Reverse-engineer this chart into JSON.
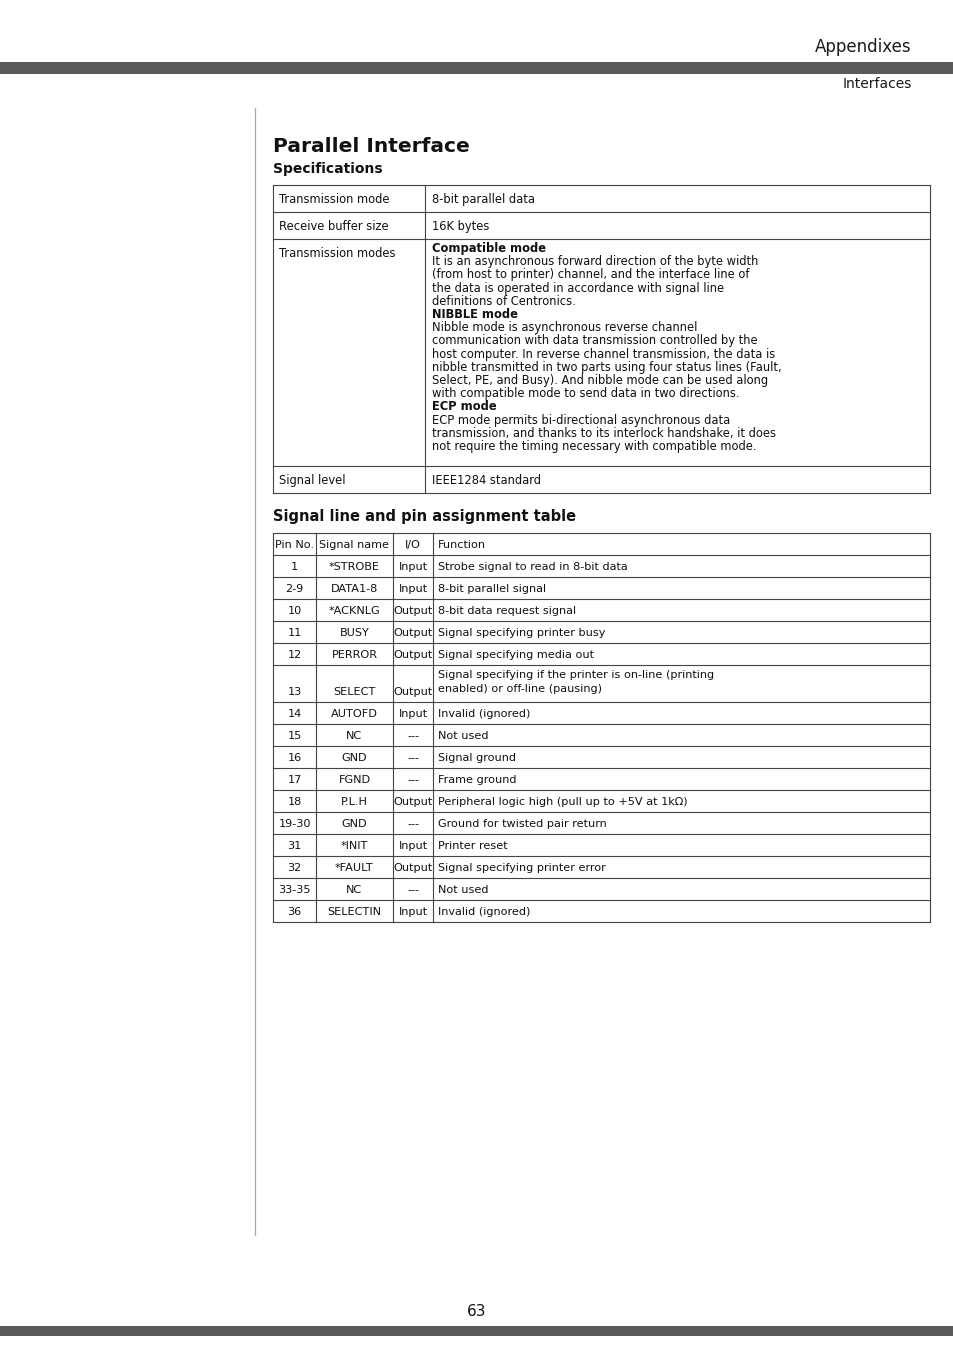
{
  "page_bg": "#ffffff",
  "header_bar_color": "#5a5a5a",
  "header_text": "Appendixes",
  "subheader_text": "Interfaces",
  "section_title": "Parallel Interface",
  "section_subtitle": "Specifications",
  "mode_lines": [
    [
      "bold",
      "Compatible mode"
    ],
    [
      "normal",
      "It is an asynchronous forward direction of the byte width"
    ],
    [
      "normal",
      "(from host to printer) channel, and the interface line of"
    ],
    [
      "normal",
      "the data is operated in accordance with signal line"
    ],
    [
      "normal",
      "definitions of Centronics."
    ],
    [
      "bold",
      "NIBBLE mode"
    ],
    [
      "normal",
      "Nibble mode is asynchronous reverse channel"
    ],
    [
      "normal",
      "communication with data transmission controlled by the"
    ],
    [
      "normal",
      "host computer. In reverse channel transmission, the data is"
    ],
    [
      "normal",
      "nibble transmitted in two parts using four status lines (Fault,"
    ],
    [
      "normal",
      "Select, PE, and Busy). And nibble mode can be used along"
    ],
    [
      "normal",
      "with compatible mode to send data in two directions."
    ],
    [
      "bold",
      "ECP mode"
    ],
    [
      "normal",
      "ECP mode permits bi-directional asynchronous data"
    ],
    [
      "normal",
      "transmission, and thanks to its interlock handshake, it does"
    ],
    [
      "normal",
      "not require the timing necessary with compatible mode."
    ]
  ],
  "pin_table_title": "Signal line and pin assignment table",
  "pin_table_headers": [
    "Pin No.",
    "Signal name",
    "I/O",
    "Function"
  ],
  "pin_table_rows": [
    [
      "1",
      "*STROBE",
      "Input",
      "Strobe signal to read in 8-bit data"
    ],
    [
      "2-9",
      "DATA1-8",
      "Input",
      "8-bit parallel signal"
    ],
    [
      "10",
      "*ACKNLG",
      "Output",
      "8-bit data request signal"
    ],
    [
      "11",
      "BUSY",
      "Output",
      "Signal specifying printer busy"
    ],
    [
      "12",
      "PERROR",
      "Output",
      "Signal specifying media out"
    ],
    [
      "13",
      "SELECT",
      "Output",
      "Signal specifying if the printer is on-line (printing\nenabled) or off-line (pausing)"
    ],
    [
      "14",
      "AUTOFD",
      "Input",
      "Invalid (ignored)"
    ],
    [
      "15",
      "NC",
      "---",
      "Not used"
    ],
    [
      "16",
      "GND",
      "---",
      "Signal ground"
    ],
    [
      "17",
      "FGND",
      "---",
      "Frame ground"
    ],
    [
      "18",
      "P.L.H",
      "Output",
      "Peripheral logic high (pull up to +5V at 1kΩ)"
    ],
    [
      "19-30",
      "GND",
      "---",
      "Ground for twisted pair return"
    ],
    [
      "31",
      "*INIT",
      "Input",
      "Printer reset"
    ],
    [
      "32",
      "*FAULT",
      "Output",
      "Signal specifying printer error"
    ],
    [
      "33-35",
      "NC",
      "---",
      "Not used"
    ],
    [
      "36",
      "SELECTIN",
      "Input",
      "Invalid (ignored)"
    ]
  ],
  "footer_page": "63"
}
